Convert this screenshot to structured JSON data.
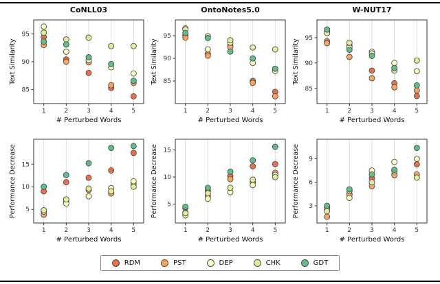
{
  "figure": {
    "legend": {
      "marker_edge": "#4d4d4d",
      "items": [
        {
          "label": "RDM",
          "color": "#e8704d"
        },
        {
          "label": "PST",
          "color": "#f9a45c"
        },
        {
          "label": "DEP",
          "color": "#fdfdbd"
        },
        {
          "label": "CHK",
          "color": "#e4ec9b"
        },
        {
          "label": "GDT",
          "color": "#62bd8b"
        }
      ]
    },
    "style": {
      "grid_color": "#dcdcdc",
      "spine_color": "#333333",
      "tick_color": "#333333"
    }
  },
  "chart_data": [
    {
      "type": "scatter",
      "title": "CoNLL03",
      "xlabel": "# Perturbed Words",
      "ylabel": "Text Similarity",
      "x": [
        1,
        2,
        3,
        4,
        5
      ],
      "xlim": [
        0.55,
        5.45
      ],
      "ylim": [
        82.5,
        97.5
      ],
      "yticks": [
        85,
        90,
        95
      ],
      "grid": "vertical",
      "series": [
        {
          "name": "RDM",
          "values": [
            94.4,
            90.4,
            88.0,
            85.3,
            83.8
          ]
        },
        {
          "name": "PST",
          "values": [
            93.0,
            90.0,
            89.9,
            85.8,
            86.2
          ]
        },
        {
          "name": "DEP",
          "values": [
            96.3,
            91.8,
            90.3,
            89.0,
            87.9
          ]
        },
        {
          "name": "CHK",
          "values": [
            95.2,
            94.0,
            94.3,
            92.8,
            92.8
          ]
        },
        {
          "name": "GDT",
          "values": [
            93.6,
            93.1,
            90.8,
            89.6,
            86.6
          ]
        }
      ]
    },
    {
      "type": "scatter",
      "title": "OntoNotes5.0",
      "xlabel": "# Perturbed Words",
      "ylabel": "Text Similarity",
      "x": [
        1,
        2,
        3,
        4,
        5
      ],
      "xlim": [
        0.55,
        5.45
      ],
      "ylim": [
        80.0,
        98.5
      ],
      "yticks": [
        85,
        90,
        95
      ],
      "grid": "vertical",
      "series": [
        {
          "name": "RDM",
          "values": [
            95.0,
            91.0,
            92.9,
            85.0,
            82.6
          ]
        },
        {
          "name": "PST",
          "values": [
            94.6,
            90.6,
            92.5,
            84.6,
            81.6
          ]
        },
        {
          "name": "DEP",
          "values": [
            96.6,
            92.0,
            93.5,
            89.0,
            87.2
          ]
        },
        {
          "name": "CHK",
          "values": [
            96.4,
            94.9,
            94.0,
            92.4,
            92.0
          ]
        },
        {
          "name": "GDT",
          "values": [
            95.6,
            94.5,
            91.5,
            90.0,
            87.7
          ]
        }
      ]
    },
    {
      "type": "scatter",
      "title": "W-NUT17",
      "xlabel": "# Perturbed Words",
      "ylabel": "Text Similarity",
      "x": [
        1,
        2,
        3,
        4,
        5
      ],
      "xlim": [
        0.55,
        5.45
      ],
      "ylim": [
        82.0,
        98.5
      ],
      "yticks": [
        85,
        90,
        95
      ],
      "grid": "vertical",
      "series": [
        {
          "name": "RDM",
          "values": [
            94.3,
            93.4,
            88.5,
            86.0,
            83.5
          ]
        },
        {
          "name": "PST",
          "values": [
            93.9,
            91.2,
            87.0,
            85.2,
            84.6
          ]
        },
        {
          "name": "DEP",
          "values": [
            96.2,
            93.1,
            92.2,
            90.0,
            88.4
          ]
        },
        {
          "name": "CHK",
          "values": [
            95.9,
            94.0,
            91.9,
            88.5,
            90.5
          ]
        },
        {
          "name": "GDT",
          "values": [
            96.6,
            92.6,
            91.4,
            89.0,
            85.6
          ]
        }
      ]
    },
    {
      "type": "scatter",
      "title": "",
      "xlabel": "# Perturbed Words",
      "ylabel": "Performance Decrease",
      "x": [
        1,
        2,
        3,
        4,
        5
      ],
      "xlim": [
        0.55,
        5.45
      ],
      "ylim": [
        2.0,
        20.5
      ],
      "yticks": [
        5,
        10,
        15
      ],
      "grid": "vertical",
      "series": [
        {
          "name": "RDM",
          "values": [
            9.0,
            11.0,
            12.0,
            13.6,
            17.5
          ]
        },
        {
          "name": "PST",
          "values": [
            3.8,
            6.8,
            9.3,
            8.5,
            10.6
          ]
        },
        {
          "name": "DEP",
          "values": [
            4.5,
            6.3,
            7.9,
            9.7,
            11.2
          ]
        },
        {
          "name": "CHK",
          "values": [
            4.8,
            7.2,
            9.6,
            9.0,
            10.0
          ]
        },
        {
          "name": "GDT",
          "values": [
            10.0,
            12.6,
            15.2,
            18.6,
            19.0
          ]
        }
      ]
    },
    {
      "type": "scatter",
      "title": "",
      "xlabel": "# Perturbed Words",
      "ylabel": "Performance Decrease",
      "x": [
        1,
        2,
        3,
        4,
        5
      ],
      "xlim": [
        0.55,
        5.45
      ],
      "ylim": [
        1.5,
        17.0
      ],
      "yticks": [
        5,
        10,
        15
      ],
      "grid": "vertical",
      "series": [
        {
          "name": "RDM",
          "values": [
            4.3,
            7.5,
            10.2,
            12.0,
            12.4
          ]
        },
        {
          "name": "PST",
          "values": [
            3.4,
            6.5,
            9.6,
            9.0,
            10.8
          ]
        },
        {
          "name": "DEP",
          "values": [
            2.9,
            6.0,
            7.2,
            8.5,
            10.4
          ]
        },
        {
          "name": "CHK",
          "values": [
            3.3,
            7.0,
            8.0,
            9.5,
            10.0
          ]
        },
        {
          "name": "GDT",
          "values": [
            4.5,
            8.0,
            11.0,
            13.1,
            15.6
          ]
        }
      ]
    },
    {
      "type": "scatter",
      "title": "",
      "xlabel": "# Perturbed Words",
      "ylabel": "Performance Decrease",
      "x": [
        1,
        2,
        3,
        4,
        5
      ],
      "xlim": [
        0.55,
        5.45
      ],
      "ylim": [
        0.8,
        11.5
      ],
      "yticks": [
        3,
        6,
        9
      ],
      "grid": "vertical",
      "series": [
        {
          "name": "RDM",
          "values": [
            2.5,
            4.5,
            6.5,
            7.0,
            8.3
          ]
        },
        {
          "name": "PST",
          "values": [
            1.6,
            4.4,
            5.5,
            6.9,
            7.0
          ]
        },
        {
          "name": "DEP",
          "values": [
            2.8,
            4.0,
            7.5,
            8.6,
            9.0
          ]
        },
        {
          "name": "CHK",
          "values": [
            2.3,
            4.9,
            6.0,
            7.4,
            6.6
          ]
        },
        {
          "name": "GDT",
          "values": [
            3.0,
            5.1,
            7.0,
            7.6,
            10.4
          ]
        }
      ]
    }
  ]
}
